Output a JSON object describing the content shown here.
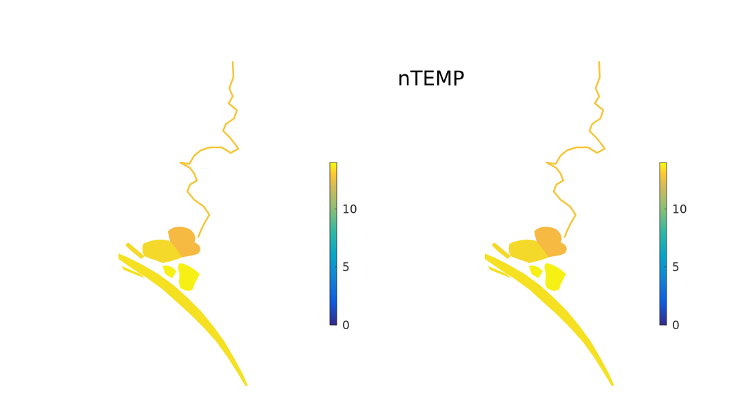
{
  "figure": {
    "title": "nTEMP"
  },
  "chart_data": [
    {
      "type": "heatmap",
      "name": "map-left",
      "colorbar": {
        "colormap": "parula",
        "range": [
          0,
          14
        ],
        "ticks": [
          {
            "value": 0,
            "label": "0"
          },
          {
            "value": 5,
            "label": "5"
          },
          {
            "value": 10,
            "label": "10"
          }
        ]
      },
      "regions": [
        {
          "id": "upper-river",
          "value": 12.5,
          "color": "#f6c536"
        },
        {
          "id": "north-bay",
          "value": 12.0,
          "color": "#f6b942"
        },
        {
          "id": "west-bay",
          "value": 13.0,
          "color": "#f4d92a"
        },
        {
          "id": "central-marsh",
          "value": 14.0,
          "color": "#f7f015"
        },
        {
          "id": "lower-channel",
          "value": 13.5,
          "color": "#f5e021"
        }
      ]
    },
    {
      "type": "heatmap",
      "name": "map-right",
      "colorbar": {
        "colormap": "parula",
        "range": [
          0,
          14
        ],
        "ticks": [
          {
            "value": 0,
            "label": "0"
          },
          {
            "value": 5,
            "label": "5"
          },
          {
            "value": 10,
            "label": "10"
          }
        ]
      },
      "regions": [
        {
          "id": "upper-river",
          "value": 12.5,
          "color": "#f6c536"
        },
        {
          "id": "north-bay",
          "value": 12.0,
          "color": "#f6b942"
        },
        {
          "id": "west-bay",
          "value": 13.0,
          "color": "#f4d92a"
        },
        {
          "id": "central-marsh",
          "value": 14.0,
          "color": "#f7f015"
        },
        {
          "id": "lower-channel",
          "value": 13.5,
          "color": "#f5e021"
        }
      ]
    }
  ]
}
